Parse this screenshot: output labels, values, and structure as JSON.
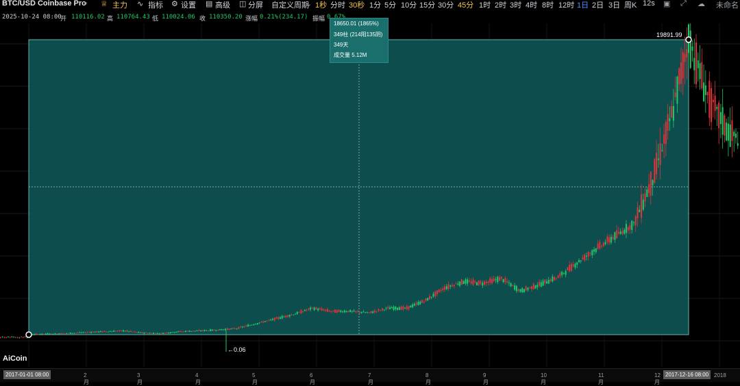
{
  "toolbar": {
    "symbol": "BTC/USD Coinbase Pro",
    "main": "主力",
    "indicators": "指标",
    "settings": "设置",
    "advanced": "高级",
    "split": "分屏",
    "custom_period": "自定义周期",
    "periods": [
      "1秒",
      "分时",
      "30秒",
      "1分",
      "5分",
      "10分",
      "15分",
      "30分",
      "45分",
      "1时",
      "2时",
      "3时",
      "4时",
      "8时",
      "12时",
      "1日",
      "2日",
      "3日",
      "周K",
      "12s"
    ],
    "selected_period": "1日",
    "active_periods": [
      "1秒",
      "30秒",
      "45分"
    ],
    "right_label": "未命名"
  },
  "info": {
    "datetime": "2025-10-24 08:00",
    "open_label": "开",
    "open": "110116.02",
    "high_label": "高",
    "high": "110764.43",
    "low_label": "低",
    "low": "110024.06",
    "close_label": "收",
    "close": "110350.20",
    "change_label": "涨幅",
    "change": "0.21%(234.17)",
    "amp_label": "振幅",
    "amp": "0.67%"
  },
  "tooltip": {
    "line1": "18650.01 (1865%)",
    "line2": "349柱 (214阳135阴)",
    "line3": "349天",
    "line4": "成交量 5.12M"
  },
  "labels": {
    "high_price": "19891.99",
    "low_price": "0.06",
    "logo": "AiCoin"
  },
  "axis": {
    "start": "2017-01-01 08:00",
    "months": [
      "2月",
      "3月",
      "4月",
      "5月",
      "6月",
      "7月",
      "8月",
      "9月",
      "10月",
      "11月",
      "12月"
    ],
    "end": "2017-12-16 08:00",
    "tail": "2018"
  },
  "colors": {
    "up": "#21c96a",
    "down": "#e0333a",
    "measure_fill": "#0f5a5a",
    "measure_border": "#5fb3b0",
    "bg": "#000000"
  },
  "chart_data": {
    "type": "candlestick",
    "series_price_path": [
      [
        0,
        1000
      ],
      [
        10,
        1050
      ],
      [
        20,
        1080
      ],
      [
        30,
        1150
      ],
      [
        40,
        1200
      ],
      [
        50,
        1250
      ],
      [
        60,
        1120
      ],
      [
        70,
        1080
      ],
      [
        80,
        1200
      ],
      [
        90,
        1250
      ],
      [
        100,
        1300
      ],
      [
        110,
        1400
      ],
      [
        120,
        1700
      ],
      [
        130,
        2000
      ],
      [
        140,
        2300
      ],
      [
        150,
        2700
      ],
      [
        160,
        2500
      ],
      [
        170,
        2500
      ],
      [
        180,
        2400
      ],
      [
        190,
        2700
      ],
      [
        200,
        2700
      ],
      [
        210,
        3200
      ],
      [
        220,
        4000
      ],
      [
        230,
        4400
      ],
      [
        240,
        4300
      ],
      [
        250,
        4600
      ],
      [
        260,
        3800
      ],
      [
        270,
        4200
      ],
      [
        280,
        4700
      ],
      [
        290,
        5600
      ],
      [
        300,
        6500
      ],
      [
        310,
        7300
      ],
      [
        320,
        8100
      ],
      [
        330,
        11000
      ],
      [
        340,
        15000
      ],
      [
        349,
        19891.99
      ],
      [
        360,
        16000
      ],
      [
        370,
        14000
      ],
      [
        375,
        13500
      ]
    ]
  }
}
